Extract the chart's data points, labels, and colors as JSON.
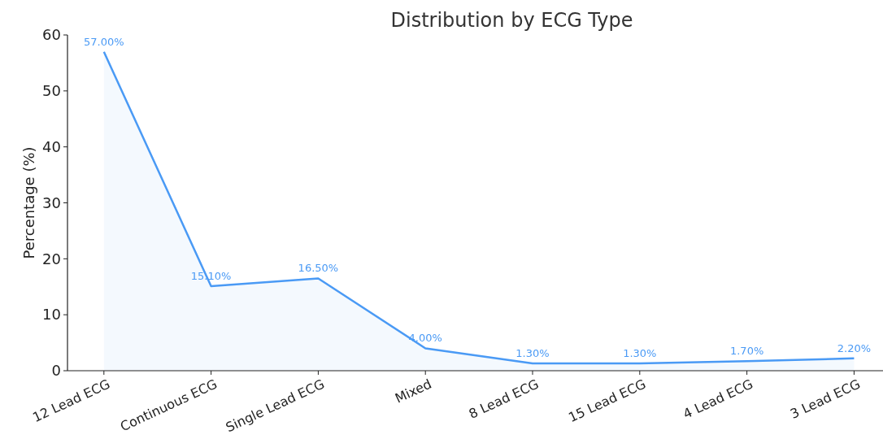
{
  "chart_data": {
    "type": "area",
    "title": "Distribution by ECG Type",
    "ylabel": "Percentage (%)",
    "categories": [
      "12 Lead ECG",
      "Continuous ECG",
      "Single Lead ECG",
      "Mixed",
      "8 Lead ECG",
      "15 Lead ECG",
      "4 Lead ECG",
      "3 Lead ECG"
    ],
    "values": [
      57,
      15.1,
      16.5,
      4,
      1.3,
      1.3,
      1.7,
      2.2
    ],
    "value_labels": [
      "57.00%",
      "15.10%",
      "16.50%",
      "4.00%",
      "1.30%",
      "1.30%",
      "1.70%",
      "2.20%"
    ],
    "color": "#4a9af5",
    "ylim": [
      0,
      60
    ],
    "yticks": [
      0,
      10,
      20,
      30,
      40,
      50,
      60
    ],
    "grid": false
  }
}
